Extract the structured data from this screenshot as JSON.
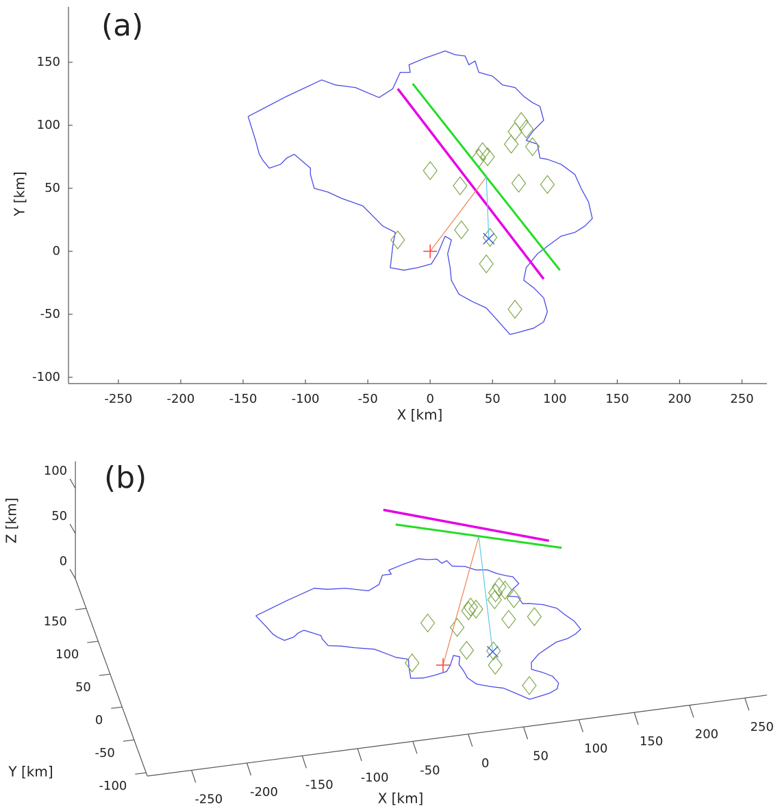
{
  "chart_data": [
    {
      "type": "map",
      "label": "(a)",
      "xlabel": "X [km]",
      "ylabel": "Y [km]",
      "xlim": [
        -290,
        270
      ],
      "ylim": [
        -105,
        194
      ],
      "xticks": [
        -250,
        -200,
        -150,
        -100,
        -50,
        0,
        50,
        100,
        150,
        200,
        250
      ],
      "yticks": [
        -100,
        -50,
        0,
        50,
        100,
        150
      ],
      "series": [
        {
          "color": "#4a4ae6",
          "marker": "line",
          "x": [
            -146,
            -115,
            -87,
            -76,
            -60,
            -41,
            -30,
            -24,
            -16,
            -17,
            -5,
            12,
            20,
            28,
            31,
            36,
            39,
            50,
            58,
            68,
            75,
            82,
            88,
            91,
            83,
            77,
            86,
            88,
            94,
            105,
            116,
            121,
            127,
            130,
            124,
            116,
            105,
            94,
            86,
            77,
            75,
            83,
            91,
            94,
            91,
            83,
            72,
            64,
            55,
            45,
            34,
            23,
            17,
            16,
            14,
            17,
            12,
            6,
            1,
            -10,
            -21,
            -32,
            -30,
            -28,
            -38,
            -46,
            -54,
            -71,
            -82,
            -93,
            -96,
            -96,
            -109,
            -115,
            -120,
            -129,
            -134,
            -137,
            -140,
            -146
          ],
          "y": [
            107,
            123,
            136,
            132,
            130,
            122,
            129,
            142,
            142,
            148,
            153,
            159,
            156,
            155,
            148,
            151,
            142,
            139,
            132,
            130,
            123,
            118,
            115,
            104,
            96,
            88,
            85,
            74,
            73,
            69,
            61,
            50,
            39,
            26,
            20,
            15,
            12,
            4,
            -2,
            -13,
            -23,
            -29,
            -37,
            -48,
            -56,
            -61,
            -64,
            -66,
            -56,
            -45,
            -40,
            -34,
            -23,
            -13,
            -2,
            9,
            12,
            -2,
            -10,
            -13,
            -15,
            -13,
            4,
            15,
            20,
            28,
            36,
            42,
            47,
            50,
            61,
            66,
            77,
            74,
            69,
            66,
            72,
            77,
            88,
            107
          ]
        },
        {
          "color": "#7fa84a",
          "marker": "diamond",
          "x": [
            0,
            24,
            25,
            -26,
            45,
            48,
            68,
            39,
            42,
            46,
            71,
            94,
            65,
            73,
            68,
            77,
            82
          ],
          "y": [
            64,
            52,
            17,
            9,
            -10,
            11,
            -46,
            74,
            79,
            75,
            54,
            53,
            85,
            103,
            95,
            97,
            83
          ]
        },
        {
          "color": "#e600e6",
          "marker": "line",
          "x": [
            -26,
            91
          ],
          "y": [
            129,
            -22
          ]
        },
        {
          "color": "#22dd22",
          "marker": "line",
          "x": [
            -14,
            104
          ],
          "y": [
            133,
            -15
          ]
        },
        {
          "color": "#f08050",
          "marker": "line",
          "x": [
            0,
            45
          ],
          "y": [
            0,
            59
          ]
        },
        {
          "color": "#5bc8e8",
          "marker": "line",
          "x": [
            47,
            45
          ],
          "y": [
            10,
            59
          ]
        },
        {
          "color": "#ff3b3b",
          "marker": "plus",
          "x": [
            0
          ],
          "y": [
            0
          ]
        },
        {
          "color": "#4060e0",
          "marker": "cross",
          "x": [
            47
          ],
          "y": [
            10
          ]
        }
      ]
    },
    {
      "type": "map3d",
      "label": "(b)",
      "xlabel": "X [km]",
      "ylabel": "Y [km]",
      "zlabel": "Z [km]",
      "xlim": [
        -290,
        270
      ],
      "ylim": [
        -105,
        195
      ],
      "zlim": [
        0,
        130
      ],
      "xticks": [
        -250,
        -200,
        -150,
        -100,
        -50,
        0,
        50,
        100,
        150,
        200,
        250
      ],
      "yticks": [
        -100,
        -50,
        0,
        50,
        100,
        150
      ],
      "zticks": [
        0,
        50,
        100
      ],
      "series": [
        {
          "color": "#4a4ae6",
          "marker": "line",
          "x": [
            -146,
            -115,
            -87,
            -76,
            -60,
            -41,
            -30,
            -24,
            -16,
            -17,
            -5,
            12,
            20,
            28,
            31,
            36,
            39,
            50,
            58,
            68,
            75,
            82,
            88,
            91,
            83,
            77,
            86,
            88,
            94,
            105,
            116,
            121,
            127,
            130,
            124,
            116,
            105,
            94,
            86,
            77,
            75,
            83,
            91,
            94,
            91,
            83,
            72,
            64,
            55,
            45,
            34,
            23,
            17,
            16,
            14,
            17,
            12,
            6,
            1,
            -10,
            -21,
            -32,
            -30,
            -28,
            -38,
            -46,
            -54,
            -71,
            -82,
            -93,
            -96,
            -96,
            -109,
            -115,
            -120,
            -129,
            -134,
            -137,
            -140,
            -146
          ],
          "y": [
            107,
            123,
            136,
            132,
            130,
            122,
            129,
            142,
            142,
            148,
            153,
            159,
            156,
            155,
            148,
            151,
            142,
            139,
            132,
            130,
            123,
            118,
            115,
            104,
            96,
            88,
            85,
            74,
            73,
            69,
            61,
            50,
            39,
            26,
            20,
            15,
            12,
            4,
            -2,
            -13,
            -23,
            -29,
            -37,
            -48,
            -56,
            -61,
            -64,
            -66,
            -56,
            -45,
            -40,
            -34,
            -23,
            -13,
            -2,
            9,
            12,
            -2,
            -10,
            -13,
            -15,
            -13,
            4,
            15,
            20,
            28,
            36,
            42,
            47,
            50,
            61,
            66,
            77,
            74,
            69,
            66,
            72,
            77,
            88,
            107
          ]
        },
        {
          "color": "#7fa84a",
          "marker": "diamond",
          "x": [
            0,
            24,
            25,
            -26,
            45,
            48,
            68,
            39,
            42,
            46,
            71,
            94,
            65,
            73,
            68,
            77,
            82
          ],
          "y": [
            64,
            52,
            17,
            9,
            -10,
            11,
            -46,
            74,
            79,
            75,
            54,
            53,
            85,
            103,
            95,
            97,
            83
          ]
        },
        {
          "color": "#e600e6",
          "marker": "line",
          "x": [
            -26,
            91
          ],
          "y": [
            129,
            -22
          ],
          "z": [
            82,
            139
          ]
        },
        {
          "color": "#22dd22",
          "marker": "line",
          "x": [
            -14,
            104
          ],
          "y": [
            133,
            -15
          ],
          "z": [
            61,
            124
          ]
        },
        {
          "color": "#f08050",
          "marker": "line",
          "x": [
            0,
            45
          ],
          "y": [
            0,
            59
          ],
          "z": [
            0,
            92
          ]
        },
        {
          "color": "#5bc8e8",
          "marker": "line",
          "x": [
            47,
            45
          ],
          "y": [
            10,
            59
          ],
          "z": [
            0,
            92
          ]
        },
        {
          "color": "#ff3b3b",
          "marker": "plus",
          "x": [
            0
          ],
          "y": [
            0
          ]
        },
        {
          "color": "#4060e0",
          "marker": "cross",
          "x": [
            47
          ],
          "y": [
            10
          ]
        }
      ]
    }
  ]
}
